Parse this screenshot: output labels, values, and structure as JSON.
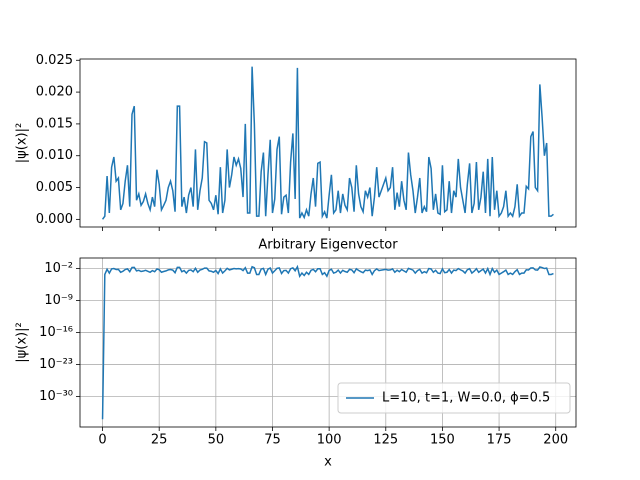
{
  "chart_data": [
    {
      "type": "line",
      "ylabel": "|ψ(x)|²",
      "x": [
        0,
        1,
        2,
        3,
        4,
        5,
        6,
        7,
        8,
        9,
        10,
        11,
        12,
        13,
        14,
        15,
        16,
        17,
        18,
        19,
        20,
        21,
        22,
        23,
        24,
        25,
        26,
        27,
        28,
        29,
        30,
        31,
        32,
        33,
        34,
        35,
        36,
        37,
        38,
        39,
        40,
        41,
        42,
        43,
        44,
        45,
        46,
        47,
        48,
        49,
        50,
        51,
        52,
        53,
        54,
        55,
        56,
        57,
        58,
        59,
        60,
        61,
        62,
        63,
        64,
        65,
        66,
        67,
        68,
        69,
        70,
        71,
        72,
        73,
        74,
        75,
        76,
        77,
        78,
        79,
        80,
        81,
        82,
        83,
        84,
        85,
        86,
        87,
        88,
        89,
        90,
        91,
        92,
        93,
        94,
        95,
        96,
        97,
        98,
        99,
        100,
        101,
        102,
        103,
        104,
        105,
        106,
        107,
        108,
        109,
        110,
        111,
        112,
        113,
        114,
        115,
        116,
        117,
        118,
        119,
        120,
        121,
        122,
        123,
        124,
        125,
        126,
        127,
        128,
        129,
        130,
        131,
        132,
        133,
        134,
        135,
        136,
        137,
        138,
        139,
        140,
        141,
        142,
        143,
        144,
        145,
        146,
        147,
        148,
        149,
        150,
        151,
        152,
        153,
        154,
        155,
        156,
        157,
        158,
        159,
        160,
        161,
        162,
        163,
        164,
        165,
        166,
        167,
        168,
        169,
        170,
        171,
        172,
        173,
        174,
        175,
        176,
        177,
        178,
        179,
        180,
        181,
        182,
        183,
        184,
        185,
        186,
        187,
        188,
        189,
        190,
        191,
        192,
        193,
        194,
        195,
        196,
        197,
        198,
        199
      ],
      "series": [
        {
          "color": "#1f77b4",
          "values": [
            0.0,
            0.0005,
            0.0068,
            0.001,
            0.0082,
            0.0098,
            0.006,
            0.0065,
            0.0015,
            0.0025,
            0.006,
            0.0085,
            0.002,
            0.0165,
            0.0178,
            0.003,
            0.004,
            0.0022,
            0.0028,
            0.004,
            0.0025,
            0.0015,
            0.0035,
            0.002,
            0.0078,
            0.0055,
            0.0015,
            0.0022,
            0.003,
            0.005,
            0.006,
            0.0045,
            0.0012,
            0.0178,
            0.0178,
            0.002,
            0.0035,
            0.001,
            0.0038,
            0.005,
            0.002,
            0.011,
            0.0015,
            0.0045,
            0.0065,
            0.0122,
            0.012,
            0.003,
            0.0025,
            0.0015,
            0.0038,
            0.0008,
            0.0082,
            0.001,
            0.003,
            0.011,
            0.005,
            0.007,
            0.0098,
            0.0085,
            0.0095,
            0.008,
            0.0035,
            0.015,
            0.001,
            0.001,
            0.024,
            0.015,
            0.0005,
            0.0005,
            0.0075,
            0.0105,
            0.0005,
            0.007,
            0.0125,
            0.001,
            0.0032,
            0.011,
            0.013,
            0.0008,
            0.0035,
            0.0038,
            0.001,
            0.009,
            0.0135,
            0.0032,
            0.0238,
            0.0002,
            0.001,
            0.0003,
            0.0015,
            0.0005,
            0.004,
            0.0065,
            0.002,
            0.0088,
            0.009,
            0.0005,
            0.0012,
            0.0002,
            0.0038,
            0.007,
            0.001,
            0.0015,
            0.0045,
            0.001,
            0.004,
            0.0022,
            0.0015,
            0.0065,
            0.005,
            0.0012,
            0.0085,
            0.004,
            0.002,
            0.0012,
            0.0045,
            0.0035,
            0.005,
            0.0005,
            0.0035,
            0.0082,
            0.0035,
            0.0045,
            0.0055,
            0.0065,
            0.0045,
            0.005,
            0.0082,
            0.0015,
            0.0042,
            0.002,
            0.006,
            0.003,
            0.0015,
            0.0105,
            0.007,
            0.0045,
            0.001,
            0.0035,
            0.0065,
            0.001,
            0.002,
            0.0012,
            0.0098,
            0.008,
            0.0015,
            0.004,
            0.001,
            0.0008,
            0.0085,
            0.0012,
            0.0015,
            0.006,
            0.001,
            0.0045,
            0.0035,
            0.0095,
            0.005,
            0.003,
            0.001,
            0.0055,
            0.0088,
            0.001,
            0.0025,
            0.009,
            0.0015,
            0.0035,
            0.0075,
            0.001,
            0.0095,
            0.0005,
            0.0098,
            0.0015,
            0.0045,
            0.0005,
            0.001,
            0.002,
            0.0045,
            0.0005,
            0.001,
            0.0005,
            0.002,
            0.0055,
            0.0005,
            0.001,
            0.001,
            0.0052,
            0.0048,
            0.013,
            0.0138,
            0.005,
            0.0045,
            0.0212,
            0.016,
            0.01,
            0.012,
            0.0005,
            0.0005,
            0.0008
          ]
        }
      ],
      "xlim": [
        -9.95,
        208.95
      ],
      "xticks": [
        0,
        25,
        50,
        75,
        100,
        125,
        150,
        175,
        200
      ],
      "ylim": [
        -0.0012,
        0.0252
      ],
      "yticks": [
        {
          "value": 0,
          "label": "0.000"
        },
        {
          "value": 0.005,
          "label": "0.005"
        },
        {
          "value": 0.01,
          "label": "0.010"
        },
        {
          "value": 0.015,
          "label": "0.015"
        },
        {
          "value": 0.02,
          "label": "0.020"
        },
        {
          "value": 0.025,
          "label": "0.025"
        }
      ],
      "grid": false
    },
    {
      "type": "line",
      "title": "Arbitrary Eigenvector",
      "xlabel": "x",
      "ylabel": "|ψ(x)|²",
      "log_y": true,
      "grid": true,
      "legend": "lower right",
      "x": [
        0,
        1,
        2,
        3,
        4,
        5,
        6,
        7,
        8,
        9,
        10,
        11,
        12,
        13,
        14,
        15,
        16,
        17,
        18,
        19,
        20,
        21,
        22,
        23,
        24,
        25,
        26,
        27,
        28,
        29,
        30,
        31,
        32,
        33,
        34,
        35,
        36,
        37,
        38,
        39,
        40,
        41,
        42,
        43,
        44,
        45,
        46,
        47,
        48,
        49,
        50,
        51,
        52,
        53,
        54,
        55,
        56,
        57,
        58,
        59,
        60,
        61,
        62,
        63,
        64,
        65,
        66,
        67,
        68,
        69,
        70,
        71,
        72,
        73,
        74,
        75,
        76,
        77,
        78,
        79,
        80,
        81,
        82,
        83,
        84,
        85,
        86,
        87,
        88,
        89,
        90,
        91,
        92,
        93,
        94,
        95,
        96,
        97,
        98,
        99,
        100,
        101,
        102,
        103,
        104,
        105,
        106,
        107,
        108,
        109,
        110,
        111,
        112,
        113,
        114,
        115,
        116,
        117,
        118,
        119,
        120,
        121,
        122,
        123,
        124,
        125,
        126,
        127,
        128,
        129,
        130,
        131,
        132,
        133,
        134,
        135,
        136,
        137,
        138,
        139,
        140,
        141,
        142,
        143,
        144,
        145,
        146,
        147,
        148,
        149,
        150,
        151,
        152,
        153,
        154,
        155,
        156,
        157,
        158,
        159,
        160,
        161,
        162,
        163,
        164,
        165,
        166,
        167,
        168,
        169,
        170,
        171,
        172,
        173,
        174,
        175,
        176,
        177,
        178,
        179,
        180,
        181,
        182,
        183,
        184,
        185,
        186,
        187,
        188,
        189,
        190,
        191,
        192,
        193,
        194,
        195,
        196,
        197,
        198,
        199
      ],
      "series": [
        {
          "name": "L=10, t=1, W=0.0, ϕ=0.5",
          "color": "#1f77b4",
          "values": [
            1e-35,
            0.0005,
            0.0068,
            0.001,
            0.0082,
            0.0098,
            0.006,
            0.0065,
            0.0015,
            0.0025,
            0.006,
            0.0085,
            0.002,
            0.0165,
            0.0178,
            0.003,
            0.004,
            0.0022,
            0.0028,
            0.004,
            0.0025,
            0.0015,
            0.0035,
            0.002,
            0.0078,
            0.0055,
            0.0015,
            0.0022,
            0.003,
            0.005,
            0.006,
            0.0045,
            0.0012,
            0.0178,
            0.0178,
            0.002,
            0.0035,
            0.001,
            0.0038,
            0.005,
            0.002,
            0.011,
            0.0015,
            0.0045,
            0.0065,
            0.0122,
            0.012,
            0.003,
            0.0025,
            0.0015,
            0.0038,
            0.0008,
            0.0082,
            0.001,
            0.003,
            0.011,
            0.005,
            0.007,
            0.0098,
            0.0085,
            0.0095,
            0.008,
            0.0035,
            0.015,
            0.001,
            0.001,
            0.024,
            0.015,
            0.0005,
            0.0005,
            0.0075,
            0.0105,
            0.0005,
            0.007,
            0.0125,
            0.001,
            0.0032,
            0.011,
            0.013,
            0.0008,
            0.0035,
            0.0038,
            0.001,
            0.009,
            0.0135,
            0.0032,
            0.0238,
            0.0002,
            0.001,
            0.0003,
            0.0015,
            0.0005,
            0.004,
            0.0065,
            0.002,
            0.0088,
            0.009,
            0.0005,
            0.0012,
            0.0002,
            0.0038,
            0.007,
            0.001,
            0.0015,
            0.0045,
            0.001,
            0.004,
            0.0022,
            0.0015,
            0.0065,
            0.005,
            0.0012,
            0.0085,
            0.004,
            0.002,
            0.0012,
            0.0045,
            0.0035,
            0.005,
            0.0005,
            0.0035,
            0.0082,
            0.0035,
            0.0045,
            0.0055,
            0.0065,
            0.0045,
            0.005,
            0.0082,
            0.0015,
            0.0042,
            0.002,
            0.006,
            0.003,
            0.0015,
            0.0105,
            0.007,
            0.0045,
            0.001,
            0.0035,
            0.0065,
            0.001,
            0.002,
            0.0012,
            0.0098,
            0.008,
            0.0015,
            0.004,
            0.001,
            0.0008,
            0.0085,
            0.0012,
            0.0015,
            0.006,
            0.001,
            0.0045,
            0.0035,
            0.0095,
            0.005,
            0.003,
            0.001,
            0.0055,
            0.0088,
            0.001,
            0.0025,
            0.009,
            0.0015,
            0.0035,
            0.0075,
            0.001,
            0.0095,
            0.0005,
            0.0098,
            0.0015,
            0.0045,
            0.0005,
            0.001,
            0.002,
            0.0045,
            0.0005,
            0.001,
            0.0005,
            0.002,
            0.0055,
            0.0005,
            0.001,
            0.001,
            0.0052,
            0.0048,
            0.013,
            0.0138,
            0.005,
            0.0045,
            0.0212,
            0.016,
            0.01,
            0.012,
            0.0005,
            0.0005,
            0.0008
          ]
        }
      ],
      "xlim": [
        -9.95,
        208.95
      ],
      "xticks": [
        0,
        25,
        50,
        75,
        100,
        125,
        150,
        175,
        200
      ],
      "ylim": [
        2e-37,
        2
      ],
      "yticks": [
        {
          "value": 1e-30,
          "label": "10⁻³⁰"
        },
        {
          "value": 1e-23,
          "label": "10⁻²³"
        },
        {
          "value": 1e-16,
          "label": "10⁻¹⁶"
        },
        {
          "value": 1e-09,
          "label": "10⁻⁹"
        },
        {
          "value": 0.01,
          "label": "10⁻²"
        }
      ]
    }
  ]
}
